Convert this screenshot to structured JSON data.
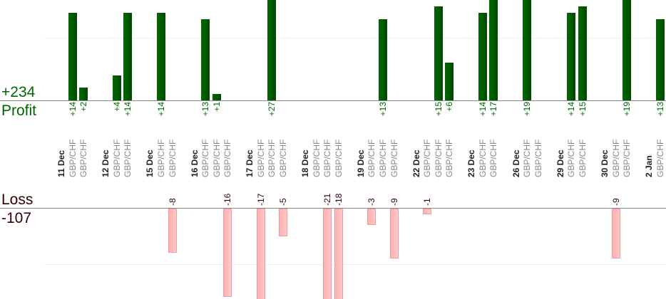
{
  "summary": {
    "profit_total": "+234",
    "profit_label": "Profit",
    "loss_label": "Loss",
    "loss_total": "-107"
  },
  "colors": {
    "profit": "#006600",
    "loss": "#330000",
    "pair": "#888888"
  },
  "chart_data": {
    "type": "bar",
    "title": "",
    "profit_ylim": [
      0,
      14
    ],
    "loss_ylim": [
      -13.5,
      0
    ],
    "days": [
      {
        "date": "11 Dec",
        "trades": [
          {
            "pair": "GBP/CHF",
            "value": 14
          },
          {
            "pair": "GBP/CHF",
            "value": 2
          }
        ]
      },
      {
        "date": "12 Dec",
        "trades": [
          {
            "pair": "GBP/CHF",
            "value": 4
          },
          {
            "pair": "GBP/CHF",
            "value": 14
          }
        ]
      },
      {
        "date": "15 Dec",
        "trades": [
          {
            "pair": "GBP/CHF",
            "value": 14
          },
          {
            "pair": "GBP/CHF",
            "value": -8
          }
        ]
      },
      {
        "date": "16 Dec",
        "trades": [
          {
            "pair": "GBP/CHF",
            "value": 13
          },
          {
            "pair": "GBP/CHF",
            "value": 1
          },
          {
            "pair": "GBP/CHF",
            "value": -16
          }
        ]
      },
      {
        "date": "17 Dec",
        "trades": [
          {
            "pair": "GBP/CHF",
            "value": -17
          },
          {
            "pair": "GBP/CHF",
            "value": 27
          },
          {
            "pair": "GBP/CHF",
            "value": -5
          }
        ]
      },
      {
        "date": "18 Dec",
        "trades": [
          {
            "pair": "GBP/CHF",
            "value": 0
          },
          {
            "pair": "GBP/CHF",
            "value": -21
          },
          {
            "pair": "GBP/CHF",
            "value": -18
          }
        ]
      },
      {
        "date": "19 Dec",
        "trades": [
          {
            "pair": "GBP/CHF",
            "value": -3
          },
          {
            "pair": "GBP/CHF",
            "value": 13
          },
          {
            "pair": "GBP/CHF",
            "value": -9
          }
        ]
      },
      {
        "date": "22 Dec",
        "trades": [
          {
            "pair": "GBP/CHF",
            "value": -1
          },
          {
            "pair": "GBP/CHF",
            "value": 15
          },
          {
            "pair": "GBP/CHF",
            "value": 6
          }
        ]
      },
      {
        "date": "23 Dec",
        "trades": [
          {
            "pair": "GBP/CHF",
            "value": 14
          },
          {
            "pair": "GBP/CHF",
            "value": 17
          }
        ]
      },
      {
        "date": "26 Dec",
        "trades": [
          {
            "pair": "GBP/CHF",
            "value": 19
          },
          {
            "pair": "GBP/CHF",
            "value": 0
          }
        ]
      },
      {
        "date": "29 Dec",
        "trades": [
          {
            "pair": "GBP/CHF",
            "value": 14
          },
          {
            "pair": "GBP/CHF",
            "value": 15
          }
        ]
      },
      {
        "date": "30 Dec",
        "trades": [
          {
            "pair": "GBP/CHF",
            "value": -9
          },
          {
            "pair": "GBP/CHF",
            "value": 19
          }
        ]
      },
      {
        "date": "2 Jan",
        "trades": [
          {
            "pair": "GBP/CHF",
            "value": 13
          }
        ]
      }
    ]
  }
}
